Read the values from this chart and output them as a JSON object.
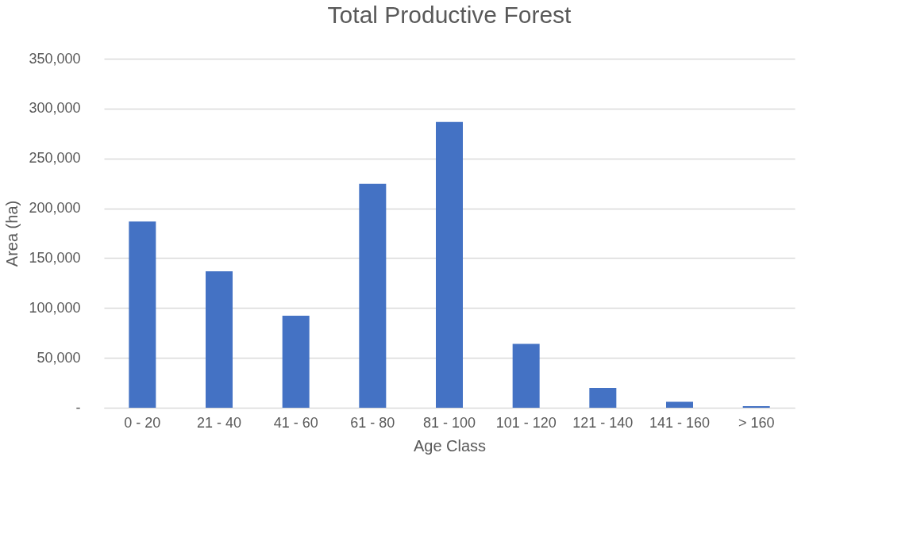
{
  "chart_data": {
    "type": "bar",
    "title": "Total Productive Forest",
    "xlabel": "Age Class",
    "ylabel": "Area (ha)",
    "categories": [
      "0 - 20",
      "21 - 40",
      "41 - 60",
      "61 - 80",
      "81 - 100",
      "101 - 120",
      "121 - 140",
      "141 - 160",
      "> 160"
    ],
    "values": [
      186700,
      136800,
      92200,
      224500,
      286500,
      64000,
      19900,
      6000,
      1500
    ],
    "color": "#4472c4",
    "ylim": [
      0,
      350000
    ],
    "yticks": [
      {
        "value": 0,
        "label": "-"
      },
      {
        "value": 50000,
        "label": "50,000"
      },
      {
        "value": 100000,
        "label": "100,000"
      },
      {
        "value": 150000,
        "label": "150,000"
      },
      {
        "value": 200000,
        "label": "200,000"
      },
      {
        "value": 250000,
        "label": "250,000"
      },
      {
        "value": 300000,
        "label": "300,000"
      },
      {
        "value": 350000,
        "label": "350,000"
      }
    ],
    "grid": "y"
  }
}
